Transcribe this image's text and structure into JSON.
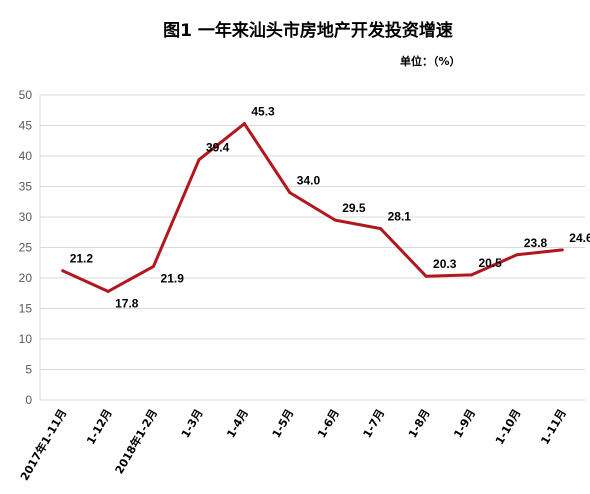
{
  "chart_data": {
    "type": "line",
    "title": "图1  一年来汕头市房地产开发投资增速",
    "unit_label": "单位：（%）",
    "categories": [
      "2017年1-11月",
      "1-12月",
      "2018年1-2月",
      "1-3月",
      "1-4月",
      "1-5月",
      "1-6月",
      "1-7月",
      "1-8月",
      "1-9月",
      "1-10月",
      "1-11月"
    ],
    "series": [
      {
        "values": [
          21.2,
          17.8,
          21.9,
          39.4,
          45.3,
          34.0,
          29.5,
          28.1,
          20.3,
          20.5,
          23.8,
          24.6
        ]
      }
    ],
    "data_labels": [
      "21.2",
      "17.8",
      "21.9",
      "39.4",
      "45.3",
      "34.0",
      "29.5",
      "28.1",
      "20.3",
      "20.5",
      "23.8",
      "24.6"
    ],
    "ylim": [
      0,
      50
    ],
    "ytick_labels": [
      "0",
      "5",
      "10",
      "15",
      "20",
      "25",
      "30",
      "35",
      "40",
      "45",
      "50"
    ],
    "grid": true,
    "legend": "none",
    "colors": {
      "line": "#B0171F",
      "grid": "#D9D9D9",
      "axis": "#D9D9D9"
    }
  }
}
